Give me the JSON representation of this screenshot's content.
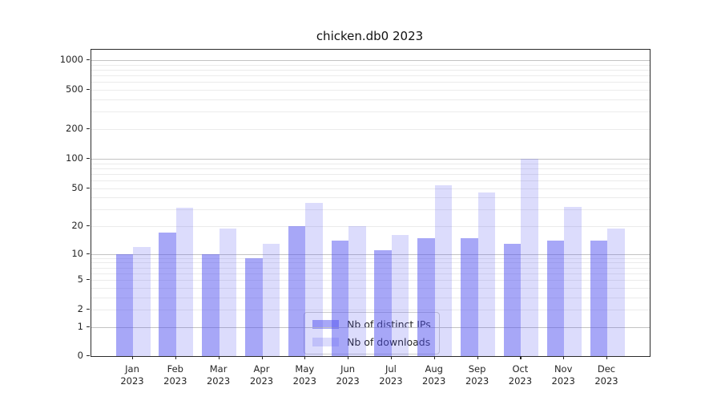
{
  "chart_data": {
    "type": "bar",
    "title": "chicken.db0 2023",
    "categories": [
      "Jan 2023",
      "Feb 2023",
      "Mar 2023",
      "Apr 2023",
      "May 2023",
      "Jun 2023",
      "Jul 2023",
      "Aug 2023",
      "Sep 2023",
      "Oct 2023",
      "Nov 2023",
      "Dec 2023"
    ],
    "series": [
      {
        "name": "Nb of distinct IPs",
        "color_hex": "#a5a5f0",
        "color_rgba": "rgba(80,80,240,0.5)",
        "values": [
          10,
          17,
          10,
          9,
          20,
          14,
          11,
          15,
          15,
          13,
          14,
          14
        ]
      },
      {
        "name": "Nb of downloads",
        "color_hex": "#dcdcf8",
        "color_rgba": "rgba(80,80,240,0.2)",
        "values": [
          12,
          31,
          19,
          13,
          35,
          20,
          16,
          53,
          45,
          100,
          32,
          19
        ]
      }
    ],
    "xlabel": "",
    "ylabel": "",
    "yscale": "log10(value+1)",
    "yticks": [
      0,
      1,
      2,
      5,
      10,
      20,
      50,
      100,
      200,
      500,
      1000
    ],
    "ylim": [
      0,
      1276
    ],
    "grid": true,
    "major_grid_at": [
      1,
      10,
      100,
      1000
    ],
    "legend_position": "lower center inside"
  },
  "colors": {
    "major_grid": "#c3c3c3",
    "minor_grid": "#ebebeb",
    "axis": "#262626",
    "background": "#ffffff"
  }
}
